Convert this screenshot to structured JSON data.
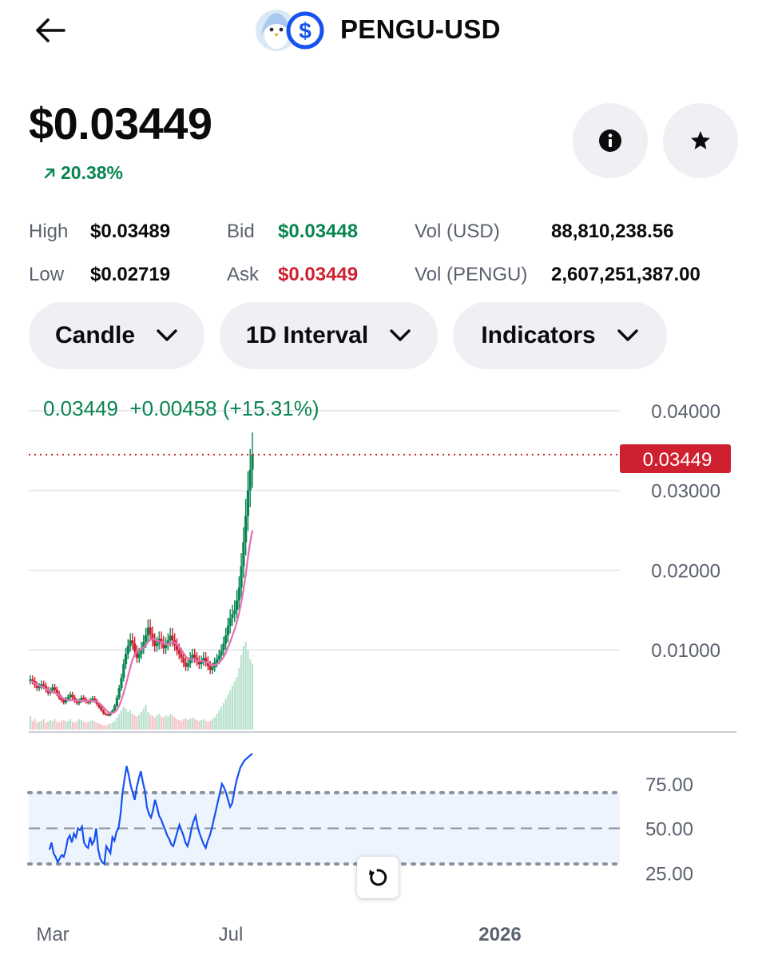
{
  "header": {
    "title": "PENGU-USD",
    "back_icon": "arrow-left-icon",
    "logo_icon": "pengu-usd-logo-icon"
  },
  "price": {
    "value": "$0.03449",
    "change": "20.38%",
    "change_icon": "arrow-up-right-icon"
  },
  "actions": {
    "info_icon": "info-icon",
    "star_icon": "star-icon"
  },
  "stats": {
    "high_label": "High",
    "high_value": "$0.03489",
    "low_label": "Low",
    "low_value": "$0.02719",
    "bid_label": "Bid",
    "bid_value": "$0.03448",
    "ask_label": "Ask",
    "ask_value": "$0.03449",
    "vol_usd_label": "Vol (USD)",
    "vol_usd_value": "88,810,238.56",
    "vol_base_label": "Vol (PENGU)",
    "vol_base_value": "2,607,251,387.00"
  },
  "controls": {
    "chart_type": "Candle",
    "interval": "1D Interval",
    "indicators": "Indicators"
  },
  "colors": {
    "up": "#098551",
    "down": "#cf202f",
    "rsi": "#1652f0",
    "ma": "#e36fb4"
  },
  "chart_data": {
    "type": "candlestick",
    "legend_text": "0.03449  +0.00458 (+15.31%)",
    "last_price_label": "0.03449",
    "price_ticks": [
      "0.04000",
      "0.03000",
      "0.02000",
      "0.01000"
    ],
    "price_tick_values": [
      0.04,
      0.03,
      0.02,
      0.01
    ],
    "rsi_ticks": [
      "75.00",
      "50.00",
      "25.00"
    ],
    "rsi_tick_values": [
      75,
      50,
      25
    ],
    "x_labels": [
      "Mar",
      "Jul",
      "2026"
    ],
    "rsi_band": [
      30,
      70
    ],
    "close_series": [
      0.0063,
      0.0061,
      0.0056,
      0.0052,
      0.0054,
      0.0057,
      0.0055,
      0.005,
      0.0046,
      0.0049,
      0.0053,
      0.005,
      0.0045,
      0.004,
      0.0037,
      0.0034,
      0.0038,
      0.0041,
      0.0044,
      0.004,
      0.0036,
      0.0033,
      0.0036,
      0.004,
      0.0038,
      0.0035,
      0.0034,
      0.0037,
      0.0039,
      0.0036,
      0.0032,
      0.0028,
      0.0024,
      0.002,
      0.0019,
      0.0018,
      0.0021,
      0.0024,
      0.003,
      0.004,
      0.0052,
      0.0065,
      0.0082,
      0.0095,
      0.0105,
      0.0112,
      0.0108,
      0.0098,
      0.009,
      0.0095,
      0.0102,
      0.011,
      0.0118,
      0.0128,
      0.012,
      0.0112,
      0.0105,
      0.0108,
      0.0114,
      0.0109,
      0.0102,
      0.0107,
      0.0112,
      0.0118,
      0.0112,
      0.0106,
      0.01,
      0.0095,
      0.009,
      0.0084,
      0.0079,
      0.0083,
      0.009,
      0.0094,
      0.009,
      0.0086,
      0.0082,
      0.0086,
      0.009,
      0.0085,
      0.008,
      0.0075,
      0.0078,
      0.0084,
      0.0088,
      0.0093,
      0.0099,
      0.0108,
      0.0118,
      0.013,
      0.014,
      0.0145,
      0.015,
      0.0162,
      0.0178,
      0.0205,
      0.0235,
      0.0268,
      0.03,
      0.0326,
      0.0345
    ],
    "ma_series": [
      0.0061,
      0.006,
      0.0058,
      0.0056,
      0.0055,
      0.0054,
      0.0053,
      0.0051,
      0.0049,
      0.0048,
      0.0047,
      0.0046,
      0.0045,
      0.0043,
      0.0041,
      0.0039,
      0.0038,
      0.0037,
      0.0037,
      0.0037,
      0.0037,
      0.0036,
      0.0036,
      0.0036,
      0.0036,
      0.0036,
      0.0036,
      0.0036,
      0.0036,
      0.0036,
      0.0035,
      0.0033,
      0.0031,
      0.0028,
      0.0025,
      0.0022,
      0.0021,
      0.0021,
      0.0022,
      0.0025,
      0.003,
      0.0037,
      0.0046,
      0.0056,
      0.0067,
      0.0078,
      0.0088,
      0.0094,
      0.0098,
      0.01,
      0.0101,
      0.0103,
      0.0106,
      0.011,
      0.0113,
      0.0114,
      0.0113,
      0.0112,
      0.0111,
      0.011,
      0.0108,
      0.0107,
      0.0107,
      0.0109,
      0.011,
      0.0109,
      0.0107,
      0.0104,
      0.01,
      0.0096,
      0.0092,
      0.0089,
      0.0088,
      0.0088,
      0.0088,
      0.0087,
      0.0086,
      0.0086,
      0.0086,
      0.0085,
      0.0084,
      0.0082,
      0.0081,
      0.0081,
      0.0082,
      0.0084,
      0.0087,
      0.0091,
      0.0096,
      0.0103,
      0.011,
      0.0118,
      0.0126,
      0.0135,
      0.0146,
      0.016,
      0.0176,
      0.0195,
      0.0216,
      0.0235,
      0.025
    ],
    "volume_series": [
      0.15,
      0.1,
      0.12,
      0.08,
      0.09,
      0.1,
      0.12,
      0.08,
      0.09,
      0.11,
      0.1,
      0.12,
      0.09,
      0.08,
      0.1,
      0.11,
      0.09,
      0.1,
      0.12,
      0.09,
      0.08,
      0.1,
      0.12,
      0.11,
      0.09,
      0.08,
      0.09,
      0.1,
      0.11,
      0.09,
      0.08,
      0.07,
      0.06,
      0.05,
      0.05,
      0.06,
      0.07,
      0.08,
      0.1,
      0.14,
      0.18,
      0.22,
      0.26,
      0.24,
      0.2,
      0.22,
      0.18,
      0.16,
      0.15,
      0.17,
      0.2,
      0.24,
      0.28,
      0.2,
      0.17,
      0.16,
      0.14,
      0.16,
      0.18,
      0.15,
      0.14,
      0.16,
      0.15,
      0.18,
      0.16,
      0.14,
      0.12,
      0.11,
      0.1,
      0.12,
      0.13,
      0.11,
      0.12,
      0.14,
      0.12,
      0.11,
      0.1,
      0.11,
      0.12,
      0.1,
      0.09,
      0.1,
      0.12,
      0.14,
      0.18,
      0.22,
      0.26,
      0.3,
      0.35,
      0.4,
      0.45,
      0.5,
      0.55,
      0.6,
      0.7,
      0.85,
      0.95,
      1.0,
      0.9,
      0.8,
      0.75
    ],
    "rsi_series": [
      38,
      42,
      36,
      34,
      31,
      33,
      35,
      34,
      38,
      44,
      46,
      42,
      47,
      45,
      50,
      49,
      51,
      42,
      40,
      39,
      45,
      41,
      43,
      50,
      38,
      33,
      31,
      30,
      40,
      38,
      36,
      45,
      43,
      48,
      50,
      58,
      70,
      78,
      85,
      80,
      74,
      70,
      66,
      73,
      78,
      82,
      76,
      71,
      62,
      58,
      56,
      60,
      66,
      62,
      57,
      55,
      52,
      49,
      46,
      44,
      41,
      40,
      44,
      48,
      52,
      49,
      46,
      42,
      40,
      44,
      50,
      54,
      57,
      51,
      47,
      44,
      41,
      39,
      43,
      46,
      50,
      55,
      60,
      65,
      70,
      75,
      73,
      70,
      66,
      62,
      64,
      70,
      76,
      80,
      84,
      86,
      88,
      89,
      90,
      91,
      92
    ],
    "ylim": [
      0,
      0.0434
    ]
  }
}
